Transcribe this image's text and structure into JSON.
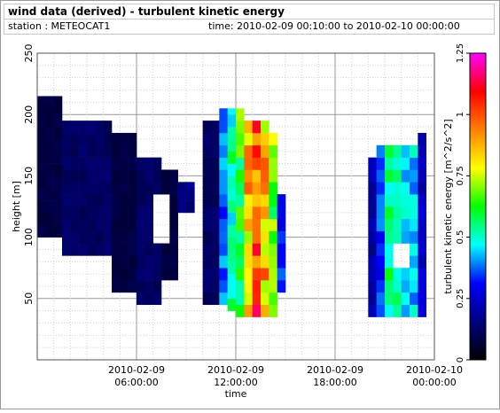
{
  "title": "wind data (derived) - turbulent kinetic energy",
  "station_label": "station : METEOCAT1",
  "time_label": "time: 2010-02-09 00:10:00 to 2010-02-10 00:00:00",
  "chart_data": {
    "type": "heatmap",
    "title": "wind data (derived) - turbulent kinetic energy",
    "xlabel": "time",
    "ylabel": "height [m]",
    "zlabel": "turbulent kinetic energy [m^2/s^2]",
    "x_ticks": [
      {
        "h": 6,
        "line1": "2010-02-09",
        "line2": "06:00:00"
      },
      {
        "h": 12,
        "line1": "2010-02-09",
        "line2": "12:00:00"
      },
      {
        "h": 18,
        "line1": "2010-02-09",
        "line2": "18:00:00"
      },
      {
        "h": 24,
        "line1": "2010-02-10",
        "line2": "00:00:00"
      }
    ],
    "xlim_hours": [
      0,
      24
    ],
    "ylim": [
      0,
      250
    ],
    "y_ticks": [
      50,
      100,
      150,
      200,
      250
    ],
    "zlim": [
      0,
      1.25
    ],
    "z_ticks": [
      0,
      0.25,
      0.5,
      0.75,
      1,
      1.25
    ],
    "grid": true,
    "colormap": [
      "#000000",
      "#000080",
      "#0000ff",
      "#00ffff",
      "#00ff00",
      "#ffff00",
      "#ff8000",
      "#ff0000",
      "#ff00ff"
    ],
    "cell_size": {
      "dt_hours": 0.5,
      "dz_m": 10
    },
    "blocks": [
      {
        "t": [
          0.0,
          1.5
        ],
        "z": [
          100,
          215
        ],
        "v": 0.08
      },
      {
        "t": [
          1.5,
          4.5
        ],
        "z": [
          85,
          195
        ],
        "v": 0.12
      },
      {
        "t": [
          4.5,
          6.0
        ],
        "z": [
          55,
          185
        ],
        "v": 0.08
      },
      {
        "t": [
          6.0,
          7.5
        ],
        "z": [
          45,
          165
        ],
        "v": 0.12
      },
      {
        "t": [
          7.5,
          8.5
        ],
        "z": [
          65,
          155
        ],
        "v": 0.08
      },
      {
        "t": [
          8.5,
          9.5
        ],
        "z": [
          80,
          145
        ],
        "v": 0.16
      },
      {
        "t": [
          10.0,
          11.0
        ],
        "z": [
          45,
          195
        ],
        "v": 0.12
      },
      {
        "t": [
          11.0,
          11.5
        ],
        "z": [
          45,
          205
        ],
        "v": 0.38
      },
      {
        "t": [
          11.5,
          12.0
        ],
        "z": [
          40,
          205
        ],
        "v": 0.52
      },
      {
        "t": [
          12.0,
          12.5
        ],
        "z": [
          35,
          205
        ],
        "v": 0.62
      },
      {
        "t": [
          12.5,
          13.0
        ],
        "z": [
          35,
          195
        ],
        "v": 0.85
      },
      {
        "t": [
          13.0,
          13.5
        ],
        "z": [
          35,
          195
        ],
        "v": 0.98
      },
      {
        "t": [
          13.5,
          14.0
        ],
        "z": [
          35,
          195
        ],
        "v": 0.86
      },
      {
        "t": [
          14.0,
          14.5
        ],
        "z": [
          35,
          185
        ],
        "v": 0.68
      },
      {
        "t": [
          14.5,
          15.0
        ],
        "z": [
          55,
          135
        ],
        "v": 0.32
      },
      {
        "t": [
          20.0,
          20.5
        ],
        "z": [
          35,
          165
        ],
        "v": 0.2
      },
      {
        "t": [
          20.5,
          21.0
        ],
        "z": [
          35,
          175
        ],
        "v": 0.34
      },
      {
        "t": [
          21.0,
          22.0
        ],
        "z": [
          35,
          175
        ],
        "v": 0.55
      },
      {
        "t": [
          22.0,
          23.0
        ],
        "z": [
          35,
          175
        ],
        "v": 0.44
      },
      {
        "t": [
          23.0,
          23.5
        ],
        "z": [
          35,
          185
        ],
        "v": 0.24
      }
    ],
    "gaps": [
      {
        "t": [
          1.0,
          1.2
        ],
        "z": [
          100,
          110
        ]
      },
      {
        "t": [
          7.0,
          7.8
        ],
        "z": [
          95,
          135
        ]
      },
      {
        "t": [
          8.5,
          9.5
        ],
        "z": [
          80,
          125
        ]
      },
      {
        "t": [
          9.5,
          10.0
        ],
        "z": [
          45,
          95
        ]
      },
      {
        "t": [
          21.5,
          22.5
        ],
        "z": [
          75,
          100
        ]
      }
    ]
  }
}
